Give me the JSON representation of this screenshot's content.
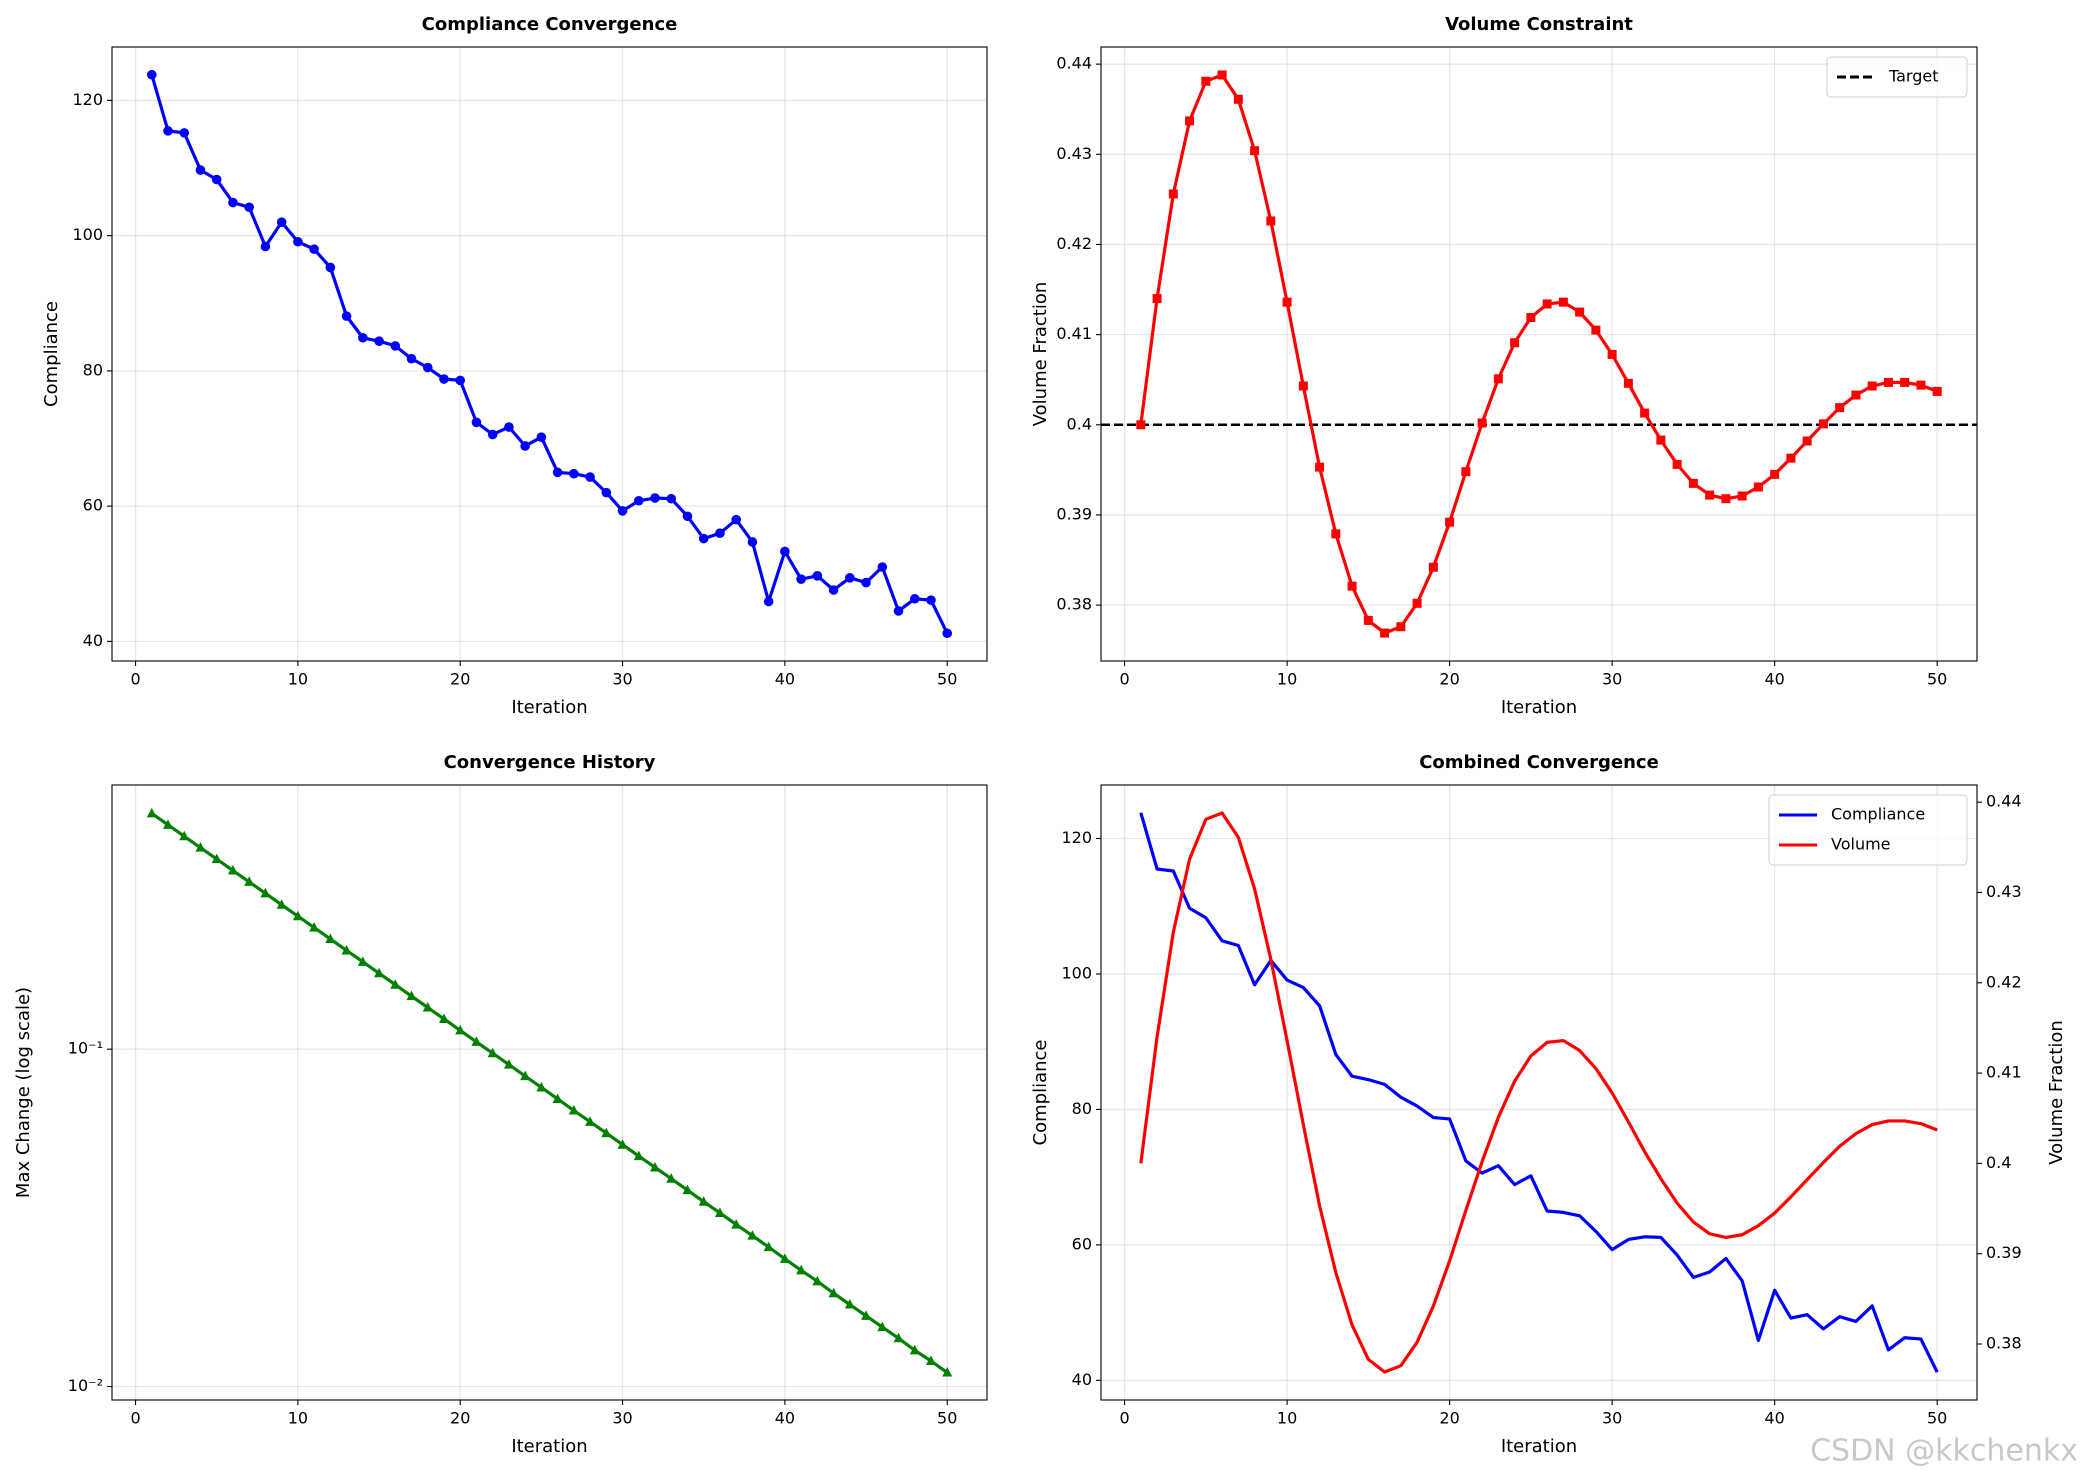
{
  "chart_data": [
    {
      "type": "line",
      "title": "Compliance Convergence",
      "xlabel": "Iteration",
      "ylabel": "Compliance",
      "x": [
        1,
        2,
        3,
        4,
        5,
        6,
        7,
        8,
        9,
        10,
        11,
        12,
        13,
        14,
        15,
        16,
        17,
        18,
        19,
        20,
        21,
        22,
        23,
        24,
        25,
        26,
        27,
        28,
        29,
        30,
        31,
        32,
        33,
        34,
        35,
        36,
        37,
        38,
        39,
        40,
        41,
        42,
        43,
        44,
        45,
        46,
        47,
        48,
        49,
        50
      ],
      "series": [
        {
          "name": "Compliance",
          "color": "#0000ff",
          "marker": "o",
          "values": [
            123.8,
            115.5,
            115.2,
            109.7,
            108.3,
            104.9,
            104.2,
            98.4,
            102.0,
            99.1,
            98.0,
            95.3,
            88.1,
            84.9,
            84.4,
            83.7,
            81.8,
            80.5,
            78.8,
            78.6,
            72.4,
            70.6,
            71.7,
            68.9,
            70.2,
            65.0,
            64.8,
            64.3,
            62.0,
            59.3,
            60.8,
            61.2,
            61.1,
            58.5,
            55.2,
            56.0,
            58.0,
            54.7,
            45.9,
            53.3,
            49.2,
            49.7,
            47.6,
            49.4,
            48.7,
            51.0,
            44.5,
            46.3,
            46.1,
            41.2
          ]
        }
      ],
      "xlim": [
        -1.45,
        52.45
      ],
      "xticks": [
        0,
        10,
        20,
        30,
        40,
        50
      ],
      "ylim": [
        37.1,
        127.9
      ],
      "yticks": [
        40,
        60,
        80,
        100,
        120
      ],
      "grid": true
    },
    {
      "type": "line",
      "title": "Volume Constraint",
      "xlabel": "Iteration",
      "ylabel": "Volume Fraction",
      "x": [
        1,
        2,
        3,
        4,
        5,
        6,
        7,
        8,
        9,
        10,
        11,
        12,
        13,
        14,
        15,
        16,
        17,
        18,
        19,
        20,
        21,
        22,
        23,
        24,
        25,
        26,
        27,
        28,
        29,
        30,
        31,
        32,
        33,
        34,
        35,
        36,
        37,
        38,
        39,
        40,
        41,
        42,
        43,
        44,
        45,
        46,
        47,
        48,
        49,
        50
      ],
      "series": [
        {
          "name": "Volume",
          "color": "#ff0000",
          "marker": "s",
          "values": [
            0.4,
            0.414,
            0.4256,
            0.4337,
            0.4381,
            0.4388,
            0.4361,
            0.4304,
            0.4226,
            0.4136,
            0.4043,
            0.3953,
            0.3879,
            0.3821,
            0.3783,
            0.3769,
            0.3776,
            0.3802,
            0.3842,
            0.3892,
            0.3948,
            0.4002,
            0.4051,
            0.4091,
            0.4119,
            0.4134,
            0.4136,
            0.4125,
            0.4105,
            0.4078,
            0.4046,
            0.4013,
            0.3983,
            0.3956,
            0.3935,
            0.3922,
            0.3918,
            0.3921,
            0.3931,
            0.3945,
            0.3963,
            0.3982,
            0.4001,
            0.4019,
            0.4033,
            0.4043,
            0.4047,
            0.4047,
            0.4044,
            0.4037
          ]
        }
      ],
      "reference": {
        "name": "Target",
        "value": 0.4,
        "color": "#000000"
      },
      "xlim": [
        -1.45,
        52.45
      ],
      "xticks": [
        0,
        10,
        20,
        30,
        40,
        50
      ],
      "ylim": [
        0.3738,
        0.4419
      ],
      "yticks": [
        0.38,
        0.39,
        0.4,
        0.41,
        0.42,
        0.43,
        0.44
      ],
      "grid": true,
      "legend": "upper-right"
    },
    {
      "type": "line",
      "title": "Convergence History",
      "xlabel": "Iteration",
      "ylabel": "Max Change (log scale)",
      "x": [
        1,
        2,
        3,
        4,
        5,
        6,
        7,
        8,
        9,
        10,
        11,
        12,
        13,
        14,
        15,
        16,
        17,
        18,
        19,
        20,
        21,
        22,
        23,
        24,
        25,
        26,
        27,
        28,
        29,
        30,
        31,
        32,
        33,
        34,
        35,
        36,
        37,
        38,
        39,
        40,
        41,
        42,
        43,
        44,
        45,
        46,
        47,
        48,
        49,
        50
      ],
      "series": [
        {
          "name": "Max Change",
          "color": "#008000",
          "marker": "^",
          "values": [
            0.5,
            0.4625,
            0.4278,
            0.3957,
            0.366,
            0.3386,
            0.3132,
            0.2897,
            0.268,
            0.2479,
            0.2293,
            0.2121,
            0.1962,
            0.1815,
            0.1679,
            0.1553,
            0.1436,
            0.1329,
            0.1229,
            0.1137,
            0.1051,
            0.0973,
            0.09,
            0.0832,
            0.077,
            0.0712,
            0.0658,
            0.0609,
            0.0564,
            0.0521,
            0.0482,
            0.0446,
            0.0413,
            0.0382,
            0.0353,
            0.0327,
            0.0302,
            0.028,
            0.0259,
            0.0239,
            0.0221,
            0.0205,
            0.0189,
            0.0175,
            0.0162,
            0.015,
            0.0139,
            0.0128,
            0.0119,
            0.011
          ]
        }
      ],
      "xlim": [
        -1.45,
        52.45
      ],
      "xticks": [
        0,
        10,
        20,
        30,
        40,
        50
      ],
      "ylim": [
        0.00912,
        0.607
      ],
      "ylog": true,
      "yticks": [
        {
          "value": 0.01,
          "label": "10⁻²"
        },
        {
          "value": 0.1,
          "label": "10⁻¹"
        }
      ],
      "grid": true
    },
    {
      "type": "line",
      "title": "Combined Convergence",
      "xlabel": "Iteration",
      "ylabel": "Compliance",
      "ylabel_color": "#0000ff",
      "y2label": "Volume Fraction",
      "y2label_color": "#ff0000",
      "x": [
        1,
        2,
        3,
        4,
        5,
        6,
        7,
        8,
        9,
        10,
        11,
        12,
        13,
        14,
        15,
        16,
        17,
        18,
        19,
        20,
        21,
        22,
        23,
        24,
        25,
        26,
        27,
        28,
        29,
        30,
        31,
        32,
        33,
        34,
        35,
        36,
        37,
        38,
        39,
        40,
        41,
        42,
        43,
        44,
        45,
        46,
        47,
        48,
        49,
        50
      ],
      "series": [
        {
          "name": "Compliance",
          "color": "#0000ff",
          "values": [
            123.8,
            115.5,
            115.2,
            109.7,
            108.3,
            104.9,
            104.2,
            98.4,
            102.0,
            99.1,
            98.0,
            95.3,
            88.1,
            84.9,
            84.4,
            83.7,
            81.8,
            80.5,
            78.8,
            78.6,
            72.4,
            70.6,
            71.7,
            68.9,
            70.2,
            65.0,
            64.8,
            64.3,
            62.0,
            59.3,
            60.8,
            61.2,
            61.1,
            58.5,
            55.2,
            56.0,
            58.0,
            54.7,
            45.9,
            53.3,
            49.2,
            49.7,
            47.6,
            49.4,
            48.7,
            51.0,
            44.5,
            46.3,
            46.1,
            41.2
          ]
        },
        {
          "name": "Volume",
          "color": "#ff0000",
          "axis": "y2",
          "values": [
            0.4,
            0.414,
            0.4256,
            0.4337,
            0.4381,
            0.4388,
            0.4361,
            0.4304,
            0.4226,
            0.4136,
            0.4043,
            0.3953,
            0.3879,
            0.3821,
            0.3783,
            0.3769,
            0.3776,
            0.3802,
            0.3842,
            0.3892,
            0.3948,
            0.4002,
            0.4051,
            0.4091,
            0.4119,
            0.4134,
            0.4136,
            0.4125,
            0.4105,
            0.4078,
            0.4046,
            0.4013,
            0.3983,
            0.3956,
            0.3935,
            0.3922,
            0.3918,
            0.3921,
            0.3931,
            0.3945,
            0.3963,
            0.3982,
            0.4001,
            0.4019,
            0.4033,
            0.4043,
            0.4047,
            0.4047,
            0.4044,
            0.4037
          ]
        }
      ],
      "xlim": [
        -1.45,
        52.45
      ],
      "xticks": [
        0,
        10,
        20,
        30,
        40,
        50
      ],
      "ylim": [
        37.1,
        127.9
      ],
      "yticks": [
        40,
        60,
        80,
        100,
        120
      ],
      "y2lim": [
        0.3738,
        0.4419
      ],
      "y2ticks": [
        0.38,
        0.39,
        0.4,
        0.41,
        0.42,
        0.43,
        0.44
      ],
      "grid": true,
      "legend": "upper-right"
    }
  ],
  "watermark": "CSDN @kkchenkx"
}
